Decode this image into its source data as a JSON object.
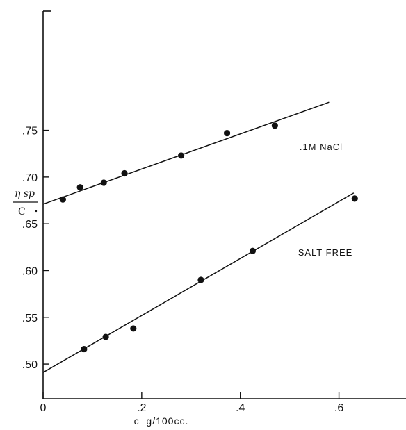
{
  "chart_data": {
    "type": "scatter",
    "xlabel": "c  g/100cc.",
    "ylabel_numerator": "η sp",
    "ylabel_denominator": "C",
    "xlim": [
      0,
      0.7
    ],
    "ylim": [
      0.48,
      0.78
    ],
    "x_ticks": [
      {
        "value": 0,
        "label": "0"
      },
      {
        "value": 0.2,
        "label": ".2"
      },
      {
        "value": 0.4,
        "label": ".4"
      },
      {
        "value": 0.6,
        "label": ".6"
      }
    ],
    "y_ticks": [
      {
        "value": 0.5,
        "label": ".50"
      },
      {
        "value": 0.55,
        "label": ".55"
      },
      {
        "value": 0.6,
        "label": ".60"
      },
      {
        "value": 0.65,
        "label": ".65"
      },
      {
        "value": 0.7,
        "label": ".70"
      },
      {
        "value": 0.75,
        "label": ".75"
      }
    ],
    "series": [
      {
        "name": ".1M NaCl",
        "label_pos": [
          0.52,
          0.729
        ],
        "points": [
          {
            "x": 0.04,
            "y": 0.676
          },
          {
            "x": 0.075,
            "y": 0.689
          },
          {
            "x": 0.123,
            "y": 0.694
          },
          {
            "x": 0.165,
            "y": 0.704
          },
          {
            "x": 0.28,
            "y": 0.723
          },
          {
            "x": 0.373,
            "y": 0.747
          },
          {
            "x": 0.47,
            "y": 0.755
          }
        ],
        "fit_line": [
          [
            0,
            0.671
          ],
          [
            0.58,
            0.78
          ]
        ]
      },
      {
        "name": "SALT FREE",
        "label_pos": [
          0.517,
          0.616
        ],
        "points": [
          {
            "x": 0.083,
            "y": 0.516
          },
          {
            "x": 0.127,
            "y": 0.529
          },
          {
            "x": 0.183,
            "y": 0.538
          },
          {
            "x": 0.32,
            "y": 0.59
          },
          {
            "x": 0.425,
            "y": 0.621
          },
          {
            "x": 0.632,
            "y": 0.677
          }
        ],
        "fit_line": [
          [
            0,
            0.491
          ],
          [
            0.63,
            0.683
          ]
        ]
      }
    ],
    "grid": false,
    "legend": "none"
  }
}
